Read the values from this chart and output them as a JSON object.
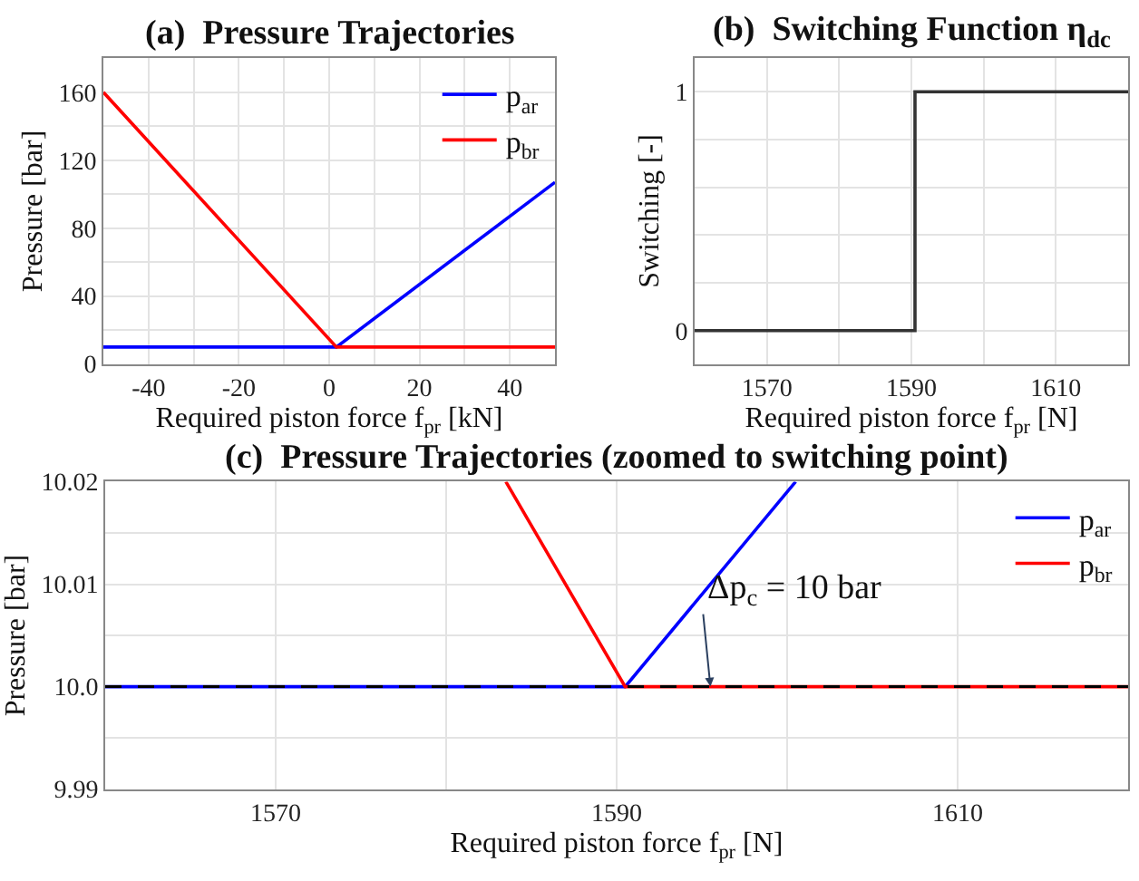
{
  "chart_data": [
    {
      "type": "line",
      "title": "(a)  Pressure Trajectories",
      "xlabel": "Required piston force f$_{pr}$ [kN]",
      "ylabel": "Pressure [bar]",
      "xlim": [
        -50,
        50
      ],
      "xticks": [
        -40,
        {
          "value": -30,
          "label": null
        },
        -20,
        {
          "value": -10,
          "label": null
        },
        0,
        {
          "value": 10,
          "label": null
        },
        20,
        {
          "value": 30,
          "label": null
        },
        40
      ],
      "ylim": [
        0,
        180
      ],
      "yticks": [
        0,
        {
          "value": 20,
          "label": null
        },
        40,
        {
          "value": 60,
          "label": null
        },
        80,
        {
          "value": 100,
          "label": null
        },
        120,
        {
          "value": 140,
          "label": null
        },
        160
      ],
      "grid": true,
      "legend": "top right",
      "series": [
        {
          "name": "p$_{ar}$",
          "color": "#0000ff",
          "x": [
            -50,
            1.6,
            50
          ],
          "values": [
            10,
            10,
            107
          ]
        },
        {
          "name": "p$_{br}$",
          "color": "#ff0000",
          "x": [
            -50,
            1.6,
            50
          ],
          "values": [
            160,
            10,
            10
          ]
        }
      ]
    },
    {
      "type": "step",
      "title": "(b)  Switching Function η$_{dc}$",
      "xlabel": "Required piston force f$_{pr}$ [N]",
      "ylabel": "Switching [-]",
      "xlim": [
        1560,
        1620
      ],
      "xticks": [
        1570,
        {
          "value": 1580,
          "label": null
        },
        1590,
        {
          "value": 1600,
          "label": null
        },
        1610
      ],
      "ylim": [
        -0.14,
        1.14
      ],
      "yticks": [
        0,
        {
          "value": 0.2,
          "label": null
        },
        {
          "value": 0.4,
          "label": null
        },
        {
          "value": 0.6,
          "label": null
        },
        {
          "value": 0.8,
          "label": null
        },
        1
      ],
      "grid": true,
      "series": [
        {
          "color": "#333333",
          "x": [
            1560,
            1590.5,
            1620
          ],
          "values": [
            0,
            1,
            1
          ]
        }
      ]
    },
    {
      "type": "line",
      "title": "(c)  Pressure Trajectories (zoomed to switching point)",
      "xlabel": "Required piston force f$_{pr}$ [N]",
      "ylabel": "Pressure [bar]",
      "xlim": [
        1560,
        1620
      ],
      "xticks": [
        {
          "value": 1560,
          "label": null
        },
        1570,
        {
          "value": 1580,
          "label": null
        },
        1590,
        {
          "value": 1600,
          "label": null
        },
        1610,
        {
          "value": 1620,
          "label": null
        }
      ],
      "ylim": [
        9.99,
        10.02
      ],
      "yticks": [
        9.99,
        {
          "value": 9.995,
          "label": null
        },
        {
          "value": 10.0,
          "label": "10.0"
        },
        {
          "value": 10.005,
          "label": null
        },
        10.01,
        {
          "value": 10.015,
          "label": null
        },
        10.02
      ],
      "grid": true,
      "legend": "top right",
      "series": [
        {
          "name": "p$_{ar}$",
          "color": "#0000ff",
          "x": [
            1560,
            1590.5,
            1600.5
          ],
          "values": [
            10.0,
            10.0,
            10.02
          ]
        },
        {
          "name": "p$_{br}$",
          "color": "#ff0000",
          "x": [
            1583.5,
            1590.5,
            1620
          ],
          "values": [
            10.02,
            10.0,
            10.0
          ]
        }
      ],
      "ref_lines": [
        {
          "axis": "y",
          "value": 10.0,
          "color": "#000000",
          "line_style": "dashed"
        }
      ],
      "annotations": [
        {
          "text": "Δp$_{c}$ = 10 bar",
          "x": 1595.5,
          "y": 10.0
        }
      ]
    }
  ]
}
